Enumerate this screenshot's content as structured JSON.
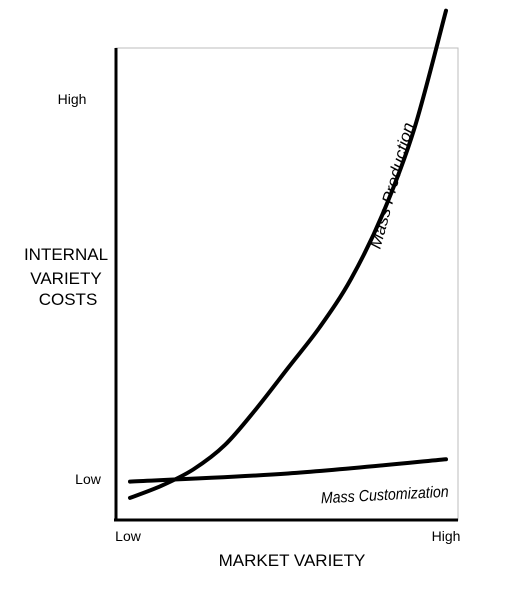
{
  "chart_data": {
    "type": "line",
    "title": "",
    "xlabel": "MARKET VARIETY",
    "ylabel": [
      "INTERNAL",
      "VARIETY",
      "COSTS"
    ],
    "x_ticks": [
      "Low",
      "High"
    ],
    "y_ticks": [
      "High",
      "Low"
    ],
    "grid": false,
    "series": [
      {
        "name": "Mass Production",
        "x": [
          0,
          0.1,
          0.2,
          0.3,
          0.4,
          0.5,
          0.6,
          0.7,
          0.8,
          0.9,
          1.0
        ],
        "y": [
          0.02,
          0.05,
          0.09,
          0.15,
          0.24,
          0.34,
          0.44,
          0.56,
          0.72,
          0.93,
          1.22
        ]
      },
      {
        "name": "Mass Customization",
        "x": [
          0,
          0.5,
          1.0
        ],
        "y": [
          0.06,
          0.08,
          0.115
        ]
      }
    ]
  }
}
